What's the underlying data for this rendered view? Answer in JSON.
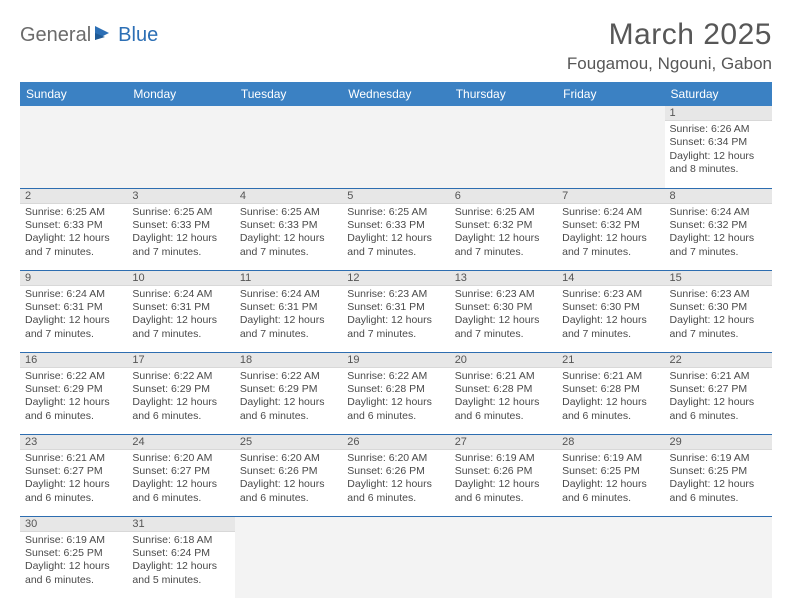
{
  "logo": {
    "part1": "General",
    "part2": "Blue"
  },
  "title": "March 2025",
  "subtitle": "Fougamou, Ngouni, Gabon",
  "colors": {
    "header_bg": "#3b81c3",
    "header_text": "#ffffff",
    "border": "#2d6db0",
    "daynum_bg": "#e7e7e7",
    "blank_bg": "#f3f3f3",
    "title_color": "#575757",
    "logo_gray": "#6b6b6b",
    "logo_blue": "#2c6fb5"
  },
  "weekdays": [
    "Sunday",
    "Monday",
    "Tuesday",
    "Wednesday",
    "Thursday",
    "Friday",
    "Saturday"
  ],
  "weeks": [
    [
      null,
      null,
      null,
      null,
      null,
      null,
      {
        "n": "1",
        "sr": "6:26 AM",
        "ss": "6:34 PM",
        "dl": "12 hours and 8 minutes."
      }
    ],
    [
      {
        "n": "2",
        "sr": "6:25 AM",
        "ss": "6:33 PM",
        "dl": "12 hours and 7 minutes."
      },
      {
        "n": "3",
        "sr": "6:25 AM",
        "ss": "6:33 PM",
        "dl": "12 hours and 7 minutes."
      },
      {
        "n": "4",
        "sr": "6:25 AM",
        "ss": "6:33 PM",
        "dl": "12 hours and 7 minutes."
      },
      {
        "n": "5",
        "sr": "6:25 AM",
        "ss": "6:33 PM",
        "dl": "12 hours and 7 minutes."
      },
      {
        "n": "6",
        "sr": "6:25 AM",
        "ss": "6:32 PM",
        "dl": "12 hours and 7 minutes."
      },
      {
        "n": "7",
        "sr": "6:24 AM",
        "ss": "6:32 PM",
        "dl": "12 hours and 7 minutes."
      },
      {
        "n": "8",
        "sr": "6:24 AM",
        "ss": "6:32 PM",
        "dl": "12 hours and 7 minutes."
      }
    ],
    [
      {
        "n": "9",
        "sr": "6:24 AM",
        "ss": "6:31 PM",
        "dl": "12 hours and 7 minutes."
      },
      {
        "n": "10",
        "sr": "6:24 AM",
        "ss": "6:31 PM",
        "dl": "12 hours and 7 minutes."
      },
      {
        "n": "11",
        "sr": "6:24 AM",
        "ss": "6:31 PM",
        "dl": "12 hours and 7 minutes."
      },
      {
        "n": "12",
        "sr": "6:23 AM",
        "ss": "6:31 PM",
        "dl": "12 hours and 7 minutes."
      },
      {
        "n": "13",
        "sr": "6:23 AM",
        "ss": "6:30 PM",
        "dl": "12 hours and 7 minutes."
      },
      {
        "n": "14",
        "sr": "6:23 AM",
        "ss": "6:30 PM",
        "dl": "12 hours and 7 minutes."
      },
      {
        "n": "15",
        "sr": "6:23 AM",
        "ss": "6:30 PM",
        "dl": "12 hours and 7 minutes."
      }
    ],
    [
      {
        "n": "16",
        "sr": "6:22 AM",
        "ss": "6:29 PM",
        "dl": "12 hours and 6 minutes."
      },
      {
        "n": "17",
        "sr": "6:22 AM",
        "ss": "6:29 PM",
        "dl": "12 hours and 6 minutes."
      },
      {
        "n": "18",
        "sr": "6:22 AM",
        "ss": "6:29 PM",
        "dl": "12 hours and 6 minutes."
      },
      {
        "n": "19",
        "sr": "6:22 AM",
        "ss": "6:28 PM",
        "dl": "12 hours and 6 minutes."
      },
      {
        "n": "20",
        "sr": "6:21 AM",
        "ss": "6:28 PM",
        "dl": "12 hours and 6 minutes."
      },
      {
        "n": "21",
        "sr": "6:21 AM",
        "ss": "6:28 PM",
        "dl": "12 hours and 6 minutes."
      },
      {
        "n": "22",
        "sr": "6:21 AM",
        "ss": "6:27 PM",
        "dl": "12 hours and 6 minutes."
      }
    ],
    [
      {
        "n": "23",
        "sr": "6:21 AM",
        "ss": "6:27 PM",
        "dl": "12 hours and 6 minutes."
      },
      {
        "n": "24",
        "sr": "6:20 AM",
        "ss": "6:27 PM",
        "dl": "12 hours and 6 minutes."
      },
      {
        "n": "25",
        "sr": "6:20 AM",
        "ss": "6:26 PM",
        "dl": "12 hours and 6 minutes."
      },
      {
        "n": "26",
        "sr": "6:20 AM",
        "ss": "6:26 PM",
        "dl": "12 hours and 6 minutes."
      },
      {
        "n": "27",
        "sr": "6:19 AM",
        "ss": "6:26 PM",
        "dl": "12 hours and 6 minutes."
      },
      {
        "n": "28",
        "sr": "6:19 AM",
        "ss": "6:25 PM",
        "dl": "12 hours and 6 minutes."
      },
      {
        "n": "29",
        "sr": "6:19 AM",
        "ss": "6:25 PM",
        "dl": "12 hours and 6 minutes."
      }
    ],
    [
      {
        "n": "30",
        "sr": "6:19 AM",
        "ss": "6:25 PM",
        "dl": "12 hours and 6 minutes."
      },
      {
        "n": "31",
        "sr": "6:18 AM",
        "ss": "6:24 PM",
        "dl": "12 hours and 5 minutes."
      },
      null,
      null,
      null,
      null,
      null
    ]
  ],
  "labels": {
    "sunrise": "Sunrise:",
    "sunset": "Sunset:",
    "daylight": "Daylight:"
  }
}
